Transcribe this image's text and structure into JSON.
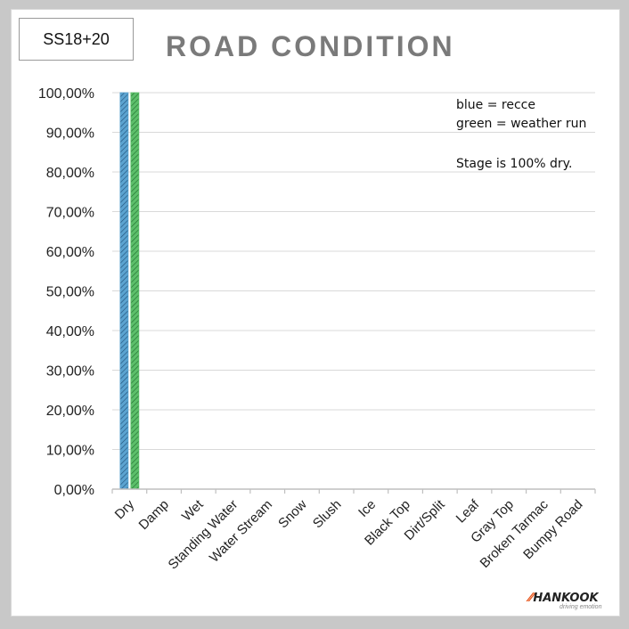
{
  "stage_label": "SS18+20",
  "notes": {
    "line1": "blue = recce",
    "line2": "green = weather run",
    "line3": "Stage is 100% dry."
  },
  "brand": {
    "name": "HANKOOK",
    "tagline": "driving emotion"
  },
  "colors": {
    "recce": "#5ba3d0",
    "weather_run": "#5cbf6a",
    "grid": "#d9d9d9",
    "axis": "#bfbfbf"
  },
  "chart_data": {
    "type": "bar",
    "title": "ROAD CONDITION",
    "categories": [
      "Dry",
      "Damp",
      "Wet",
      "Standing Water",
      "Water Stream",
      "Snow",
      "Slush",
      "Ice",
      "Black Top",
      "Dirt/Split",
      "Leaf",
      "Gray Top",
      "Broken Tarmac",
      "Bumpy Road"
    ],
    "series": [
      {
        "values": [
          100,
          0,
          0,
          0,
          0,
          0,
          0,
          0,
          0,
          0,
          0,
          0,
          0,
          0
        ]
      },
      {
        "values": [
          100,
          0,
          0,
          0,
          0,
          0,
          0,
          0,
          0,
          0,
          0,
          0,
          0,
          0
        ]
      }
    ],
    "ylim": [
      0,
      100
    ],
    "yticks": [
      "0,00%",
      "10,00%",
      "20,00%",
      "30,00%",
      "40,00%",
      "50,00%",
      "60,00%",
      "70,00%",
      "80,00%",
      "90,00%",
      "100,00%"
    ],
    "grid": true
  }
}
